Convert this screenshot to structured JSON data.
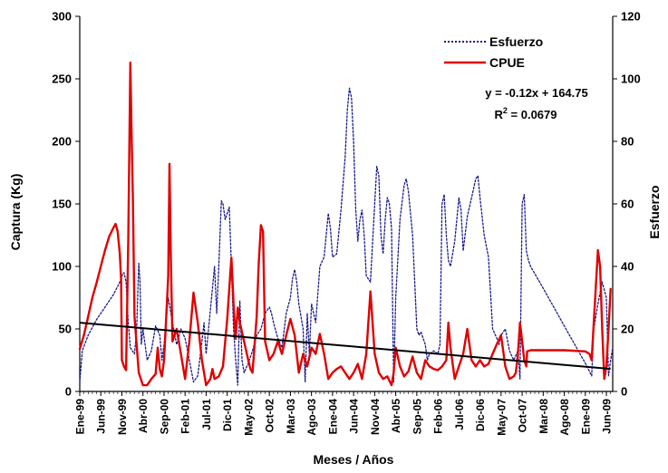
{
  "chart_data": {
    "type": "line",
    "xlabel": "Meses / Años",
    "ylabel_left": "Captura (Kg)",
    "ylabel_right": "Esfuerzo",
    "ylim_left": [
      0,
      300
    ],
    "ylim_right": [
      0,
      120
    ],
    "yticks_left": [
      "0",
      "50",
      "100",
      "150",
      "200",
      "250",
      "300"
    ],
    "yticks_right": [
      "0",
      "20",
      "40",
      "60",
      "80",
      "100",
      "120"
    ],
    "x_tick_labels": [
      "Ene-99",
      "Jun-99",
      "Nov-99",
      "Abr-00",
      "Sep-00",
      "Feb-01",
      "Jul-01",
      "Dic-01",
      "May-02",
      "Oct-02",
      "Mar-03",
      "Ago-03",
      "Ene-04",
      "Jun-04",
      "Nov-04",
      "Abr-05",
      "Sep-05",
      "Feb-06",
      "Jul-06",
      "Dic-06",
      "May-07",
      "Oct-07",
      "Mar-08",
      "Ago-08",
      "Ene-09",
      "Jun-09"
    ],
    "x_tick_month_index": [
      0,
      5,
      10,
      15,
      20,
      25,
      30,
      35,
      40,
      45,
      50,
      55,
      60,
      65,
      70,
      75,
      80,
      85,
      90,
      95,
      100,
      105,
      110,
      115,
      120,
      125
    ],
    "grid": false,
    "legend_position": "top-right",
    "colors": {
      "esfuerzo": "#1a1a8c",
      "cpue": "#e00000",
      "trend": "#000000"
    },
    "series": [
      {
        "name": "Esfuerzo",
        "axis": "right",
        "style": "dotted",
        "points": [
          [
            0,
            3
          ],
          [
            0.6,
            13
          ],
          [
            2,
            18
          ],
          [
            4,
            23
          ],
          [
            6,
            27
          ],
          [
            8,
            31
          ],
          [
            9.5,
            35
          ],
          [
            10,
            37
          ],
          [
            10.5,
            38
          ],
          [
            11,
            35
          ],
          [
            11.5,
            22
          ],
          [
            12,
            14
          ],
          [
            13,
            12
          ],
          [
            13.5,
            20
          ],
          [
            14,
            41
          ],
          [
            14.3,
            35
          ],
          [
            14.6,
            15
          ],
          [
            15,
            20
          ],
          [
            16,
            10
          ],
          [
            17,
            13
          ],
          [
            18,
            21
          ],
          [
            19,
            18
          ],
          [
            19.5,
            10
          ],
          [
            20,
            15
          ],
          [
            21,
            30
          ],
          [
            22,
            22
          ],
          [
            23,
            15
          ],
          [
            24,
            20
          ],
          [
            25,
            17
          ],
          [
            26,
            10
          ],
          [
            27,
            3
          ],
          [
            28,
            5
          ],
          [
            29,
            16
          ],
          [
            29.5,
            22
          ],
          [
            30,
            12
          ],
          [
            31,
            26
          ],
          [
            32,
            40
          ],
          [
            32.5,
            25
          ],
          [
            33,
            40
          ],
          [
            33.6,
            61
          ],
          [
            34,
            60
          ],
          [
            34.5,
            55
          ],
          [
            35,
            57
          ],
          [
            35.5,
            59
          ],
          [
            36,
            40
          ],
          [
            36.5,
            20
          ],
          [
            37,
            10
          ],
          [
            37.5,
            2
          ],
          [
            38,
            29
          ],
          [
            38.5,
            10
          ],
          [
            39,
            6
          ],
          [
            40,
            9
          ],
          [
            41,
            13
          ],
          [
            42,
            18
          ],
          [
            43,
            20
          ],
          [
            44,
            25
          ],
          [
            45,
            27
          ],
          [
            45.5,
            25
          ],
          [
            46,
            22
          ],
          [
            47,
            17
          ],
          [
            48,
            14
          ],
          [
            49,
            25
          ],
          [
            50,
            30
          ],
          [
            50.5,
            36
          ],
          [
            51,
            39
          ],
          [
            51.5,
            35
          ],
          [
            52,
            28
          ],
          [
            53,
            20
          ],
          [
            53.5,
            3
          ],
          [
            54,
            25
          ],
          [
            54.5,
            12
          ],
          [
            55,
            28
          ],
          [
            56,
            22
          ],
          [
            57,
            40
          ],
          [
            58,
            43
          ],
          [
            59,
            57
          ],
          [
            59.5,
            52
          ],
          [
            60,
            43
          ],
          [
            61,
            44
          ],
          [
            62,
            58
          ],
          [
            63,
            75
          ],
          [
            63.5,
            90
          ],
          [
            64,
            97
          ],
          [
            64.5,
            94
          ],
          [
            65,
            80
          ],
          [
            65.5,
            58
          ],
          [
            66,
            48
          ],
          [
            66.5,
            55
          ],
          [
            67,
            58
          ],
          [
            67.5,
            50
          ],
          [
            68,
            37
          ],
          [
            69,
            35
          ],
          [
            70,
            60
          ],
          [
            70.5,
            72
          ],
          [
            71,
            69
          ],
          [
            71.5,
            50
          ],
          [
            72,
            44
          ],
          [
            72.5,
            55
          ],
          [
            73,
            62
          ],
          [
            73.5,
            60
          ],
          [
            74,
            52
          ],
          [
            74.5,
            3
          ],
          [
            75,
            30
          ],
          [
            76,
            55
          ],
          [
            77,
            66
          ],
          [
            77.5,
            68
          ],
          [
            78,
            64
          ],
          [
            79,
            50
          ],
          [
            80,
            20
          ],
          [
            80.5,
            18
          ],
          [
            81,
            19
          ],
          [
            82,
            15
          ],
          [
            82.5,
            10
          ],
          [
            83,
            12
          ],
          [
            84,
            13
          ],
          [
            85,
            12
          ],
          [
            85.5,
            15
          ],
          [
            86,
            60
          ],
          [
            86.5,
            63
          ],
          [
            87,
            50
          ],
          [
            87.5,
            42
          ],
          [
            88,
            40
          ],
          [
            89,
            48
          ],
          [
            90,
            62
          ],
          [
            90.5,
            58
          ],
          [
            91,
            45
          ],
          [
            92,
            56
          ],
          [
            93,
            62
          ],
          [
            94,
            68
          ],
          [
            94.5,
            69
          ],
          [
            95,
            62
          ],
          [
            96,
            50
          ],
          [
            97,
            43
          ],
          [
            98,
            20
          ],
          [
            99,
            17
          ],
          [
            99.5,
            15
          ],
          [
            100,
            18
          ],
          [
            101,
            20
          ],
          [
            102,
            13
          ],
          [
            103,
            10
          ],
          [
            104,
            13
          ],
          [
            104.5,
            4
          ],
          [
            105,
            60
          ],
          [
            105.5,
            63
          ],
          [
            106,
            45
          ],
          [
            106.5,
            42
          ],
          [
            107,
            40
          ],
          [
            110,
            33
          ],
          [
            115,
            21
          ],
          [
            120,
            9
          ],
          [
            121.5,
            5
          ],
          [
            122,
            20
          ],
          [
            123,
            28
          ],
          [
            124,
            35
          ],
          [
            125,
            30
          ],
          [
            125.5,
            5
          ],
          [
            126,
            10
          ],
          [
            126.5,
            14
          ]
        ]
      },
      {
        "name": "CPUE",
        "axis": "left",
        "style": "solid",
        "points": [
          [
            0,
            34
          ],
          [
            1,
            45
          ],
          [
            2,
            60
          ],
          [
            3,
            75
          ],
          [
            4,
            87
          ],
          [
            5,
            100
          ],
          [
            6,
            113
          ],
          [
            7,
            124
          ],
          [
            8,
            131
          ],
          [
            8.5,
            134
          ],
          [
            9,
            128
          ],
          [
            9.5,
            110
          ],
          [
            9.8,
            90
          ],
          [
            10,
            25
          ],
          [
            10.5,
            20
          ],
          [
            11,
            17
          ],
          [
            11.5,
            120
          ],
          [
            12,
            263
          ],
          [
            12.3,
            205
          ],
          [
            12.6,
            155
          ],
          [
            13,
            60
          ],
          [
            14,
            15
          ],
          [
            15,
            5
          ],
          [
            16,
            5
          ],
          [
            17,
            10
          ],
          [
            18,
            14
          ],
          [
            18.5,
            35
          ],
          [
            19,
            18
          ],
          [
            19.5,
            12
          ],
          [
            20,
            25
          ],
          [
            21,
            92
          ],
          [
            21.3,
            182
          ],
          [
            21.6,
            110
          ],
          [
            22,
            40
          ],
          [
            23,
            50
          ],
          [
            24,
            30
          ],
          [
            25,
            10
          ],
          [
            26,
            40
          ],
          [
            27,
            79
          ],
          [
            28,
            55
          ],
          [
            29,
            25
          ],
          [
            30,
            5
          ],
          [
            31,
            10
          ],
          [
            31.5,
            18
          ],
          [
            32,
            10
          ],
          [
            33,
            12
          ],
          [
            34,
            20
          ],
          [
            35,
            58
          ],
          [
            36,
            107
          ],
          [
            36.5,
            70
          ],
          [
            37,
            42
          ],
          [
            37.5,
            67
          ],
          [
            38,
            55
          ],
          [
            39,
            40
          ],
          [
            40,
            25
          ],
          [
            40.5,
            18
          ],
          [
            41,
            15
          ],
          [
            42,
            60
          ],
          [
            42.5,
            103
          ],
          [
            43,
            133
          ],
          [
            43.5,
            128
          ],
          [
            44,
            40
          ],
          [
            45,
            25
          ],
          [
            46,
            30
          ],
          [
            47,
            40
          ],
          [
            48,
            30
          ],
          [
            49,
            45
          ],
          [
            50,
            58
          ],
          [
            51,
            45
          ],
          [
            52,
            15
          ],
          [
            53,
            30
          ],
          [
            54,
            20
          ],
          [
            55,
            35
          ],
          [
            56,
            30
          ],
          [
            57,
            46
          ],
          [
            58,
            30
          ],
          [
            59,
            10
          ],
          [
            60,
            15
          ],
          [
            61,
            18
          ],
          [
            62,
            20
          ],
          [
            63,
            15
          ],
          [
            64,
            10
          ],
          [
            65,
            15
          ],
          [
            66,
            22
          ],
          [
            67,
            10
          ],
          [
            68,
            30
          ],
          [
            69,
            80
          ],
          [
            70,
            30
          ],
          [
            71,
            15
          ],
          [
            72,
            10
          ],
          [
            73,
            12
          ],
          [
            74,
            5
          ],
          [
            74.5,
            15
          ],
          [
            75,
            35
          ],
          [
            76,
            20
          ],
          [
            77,
            12
          ],
          [
            78,
            16
          ],
          [
            79,
            28
          ],
          [
            80,
            15
          ],
          [
            81,
            10
          ],
          [
            82,
            25
          ],
          [
            83,
            20
          ],
          [
            84,
            18
          ],
          [
            85,
            17
          ],
          [
            86,
            20
          ],
          [
            87,
            25
          ],
          [
            87.5,
            55
          ],
          [
            88,
            35
          ],
          [
            89,
            10
          ],
          [
            90,
            20
          ],
          [
            91,
            30
          ],
          [
            92,
            50
          ],
          [
            93,
            25
          ],
          [
            94,
            20
          ],
          [
            95,
            25
          ],
          [
            96,
            20
          ],
          [
            97,
            22
          ],
          [
            98,
            30
          ],
          [
            99,
            38
          ],
          [
            100,
            45
          ],
          [
            101,
            20
          ],
          [
            102,
            10
          ],
          [
            103,
            12
          ],
          [
            103.5,
            15
          ],
          [
            104,
            30
          ],
          [
            104.5,
            55
          ],
          [
            105,
            40
          ],
          [
            105.5,
            25
          ],
          [
            106,
            20
          ],
          [
            106.2,
            32
          ],
          [
            107,
            33
          ],
          [
            110,
            33
          ],
          [
            115,
            33
          ],
          [
            120,
            32
          ],
          [
            121,
            30
          ],
          [
            121.5,
            25
          ],
          [
            122,
            55
          ],
          [
            123,
            113
          ],
          [
            123.5,
            100
          ],
          [
            124,
            50
          ],
          [
            124.5,
            10
          ],
          [
            125,
            20
          ],
          [
            125.5,
            50
          ],
          [
            126,
            82
          ]
        ]
      }
    ],
    "trend": {
      "equation": "y = -0.12x + 164.75",
      "r2_base": "R",
      "r2_sup": "2",
      "r2_rest": " = 0.0679",
      "start": [
        0,
        55
      ],
      "end": [
        126,
        18
      ]
    }
  }
}
